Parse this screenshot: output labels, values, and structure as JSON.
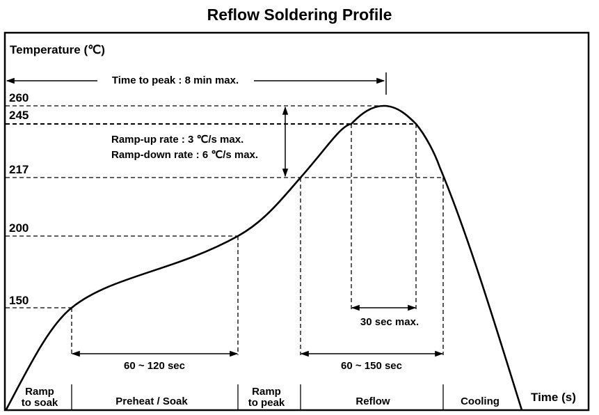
{
  "title": "Reflow Soldering Profile",
  "y_axis_label": "Temperature (℃)",
  "x_axis_label": "Time (s)",
  "temperature_levels": [
    "260",
    "245",
    "217",
    "200",
    "150"
  ],
  "annotations": {
    "time_to_peak": "Time to peak : 8 min max.",
    "ramp_up": "Ramp-up rate : 3 ℃/s max.",
    "ramp_down": "Ramp-down rate : 6 ℃/s max.",
    "peak_window": "30 sec max.",
    "soak_duration": "60 ~ 120 sec",
    "reflow_duration": "60 ~ 150 sec"
  },
  "zones": [
    {
      "line1": "Ramp",
      "line2": "to soak"
    },
    {
      "line1": "Preheat / Soak",
      "line2": ""
    },
    {
      "line1": "Ramp",
      "line2": "to peak"
    },
    {
      "line1": "Reflow",
      "line2": ""
    },
    {
      "line1": "Cooling",
      "line2": ""
    }
  ]
}
